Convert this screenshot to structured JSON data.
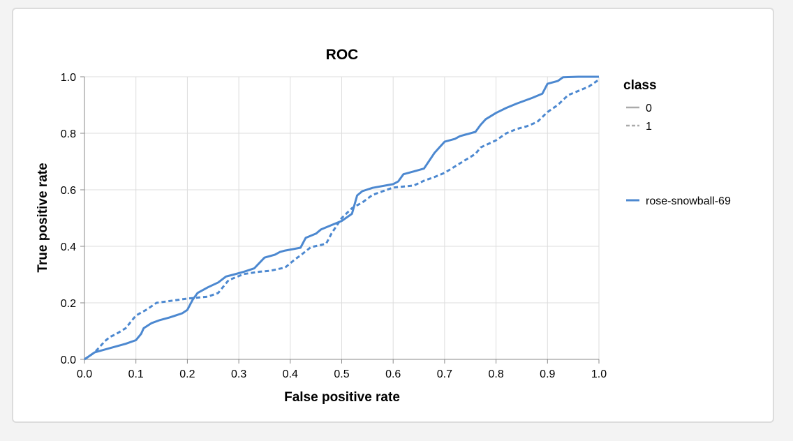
{
  "chart_data": {
    "type": "line",
    "title": "ROC",
    "xlabel": "False positive rate",
    "ylabel": "True positive rate",
    "xlim": [
      0,
      1
    ],
    "ylim": [
      0,
      1
    ],
    "x_ticks": [
      "0.0",
      "0.1",
      "0.2",
      "0.3",
      "0.4",
      "0.5",
      "0.6",
      "0.7",
      "0.8",
      "0.9",
      "1.0"
    ],
    "y_ticks": [
      "0.0",
      "0.2",
      "0.4",
      "0.6",
      "0.8",
      "1.0"
    ],
    "grid": true,
    "color": "#4c88d0",
    "legend_class": {
      "title": "class",
      "items": [
        {
          "label": "0",
          "dash": "solid"
        },
        {
          "label": "1",
          "dash": "dashed"
        }
      ]
    },
    "legend_run": {
      "label": "rose-snowball-69",
      "color": "#4c88d0"
    },
    "series": [
      {
        "name": "0",
        "dash": "solid",
        "points": [
          [
            0.0,
            0.0
          ],
          [
            0.02,
            0.025
          ],
          [
            0.05,
            0.04
          ],
          [
            0.08,
            0.055
          ],
          [
            0.1,
            0.068
          ],
          [
            0.11,
            0.09
          ],
          [
            0.115,
            0.11
          ],
          [
            0.13,
            0.128
          ],
          [
            0.145,
            0.138
          ],
          [
            0.165,
            0.148
          ],
          [
            0.19,
            0.163
          ],
          [
            0.2,
            0.175
          ],
          [
            0.21,
            0.21
          ],
          [
            0.22,
            0.235
          ],
          [
            0.24,
            0.255
          ],
          [
            0.26,
            0.272
          ],
          [
            0.275,
            0.293
          ],
          [
            0.29,
            0.3
          ],
          [
            0.31,
            0.31
          ],
          [
            0.33,
            0.322
          ],
          [
            0.35,
            0.36
          ],
          [
            0.37,
            0.37
          ],
          [
            0.38,
            0.38
          ],
          [
            0.39,
            0.385
          ],
          [
            0.42,
            0.395
          ],
          [
            0.43,
            0.43
          ],
          [
            0.45,
            0.445
          ],
          [
            0.46,
            0.46
          ],
          [
            0.48,
            0.475
          ],
          [
            0.5,
            0.49
          ],
          [
            0.52,
            0.515
          ],
          [
            0.53,
            0.58
          ],
          [
            0.54,
            0.595
          ],
          [
            0.56,
            0.607
          ],
          [
            0.6,
            0.62
          ],
          [
            0.61,
            0.63
          ],
          [
            0.62,
            0.655
          ],
          [
            0.64,
            0.665
          ],
          [
            0.66,
            0.675
          ],
          [
            0.68,
            0.73
          ],
          [
            0.69,
            0.75
          ],
          [
            0.7,
            0.77
          ],
          [
            0.72,
            0.78
          ],
          [
            0.73,
            0.79
          ],
          [
            0.76,
            0.805
          ],
          [
            0.77,
            0.83
          ],
          [
            0.78,
            0.85
          ],
          [
            0.8,
            0.872
          ],
          [
            0.82,
            0.89
          ],
          [
            0.84,
            0.905
          ],
          [
            0.87,
            0.925
          ],
          [
            0.89,
            0.94
          ],
          [
            0.9,
            0.975
          ],
          [
            0.92,
            0.985
          ],
          [
            0.93,
            0.998
          ],
          [
            0.96,
            1.0
          ],
          [
            1.0,
            1.0
          ]
        ]
      },
      {
        "name": "1",
        "dash": "dashed",
        "points": [
          [
            0.0,
            0.0
          ],
          [
            0.02,
            0.025
          ],
          [
            0.04,
            0.065
          ],
          [
            0.05,
            0.08
          ],
          [
            0.06,
            0.088
          ],
          [
            0.08,
            0.11
          ],
          [
            0.1,
            0.155
          ],
          [
            0.12,
            0.175
          ],
          [
            0.14,
            0.2
          ],
          [
            0.2,
            0.215
          ],
          [
            0.24,
            0.222
          ],
          [
            0.26,
            0.235
          ],
          [
            0.28,
            0.28
          ],
          [
            0.31,
            0.302
          ],
          [
            0.34,
            0.31
          ],
          [
            0.36,
            0.313
          ],
          [
            0.39,
            0.325
          ],
          [
            0.41,
            0.355
          ],
          [
            0.42,
            0.368
          ],
          [
            0.44,
            0.397
          ],
          [
            0.46,
            0.405
          ],
          [
            0.47,
            0.41
          ],
          [
            0.48,
            0.445
          ],
          [
            0.5,
            0.5
          ],
          [
            0.52,
            0.535
          ],
          [
            0.54,
            0.555
          ],
          [
            0.56,
            0.582
          ],
          [
            0.58,
            0.595
          ],
          [
            0.6,
            0.608
          ],
          [
            0.64,
            0.615
          ],
          [
            0.66,
            0.632
          ],
          [
            0.68,
            0.645
          ],
          [
            0.7,
            0.66
          ],
          [
            0.74,
            0.705
          ],
          [
            0.76,
            0.727
          ],
          [
            0.77,
            0.75
          ],
          [
            0.8,
            0.775
          ],
          [
            0.82,
            0.8
          ],
          [
            0.84,
            0.815
          ],
          [
            0.86,
            0.825
          ],
          [
            0.88,
            0.84
          ],
          [
            0.9,
            0.875
          ],
          [
            0.92,
            0.9
          ],
          [
            0.94,
            0.935
          ],
          [
            0.96,
            0.95
          ],
          [
            0.98,
            0.965
          ],
          [
            1.0,
            0.99
          ]
        ]
      }
    ]
  }
}
